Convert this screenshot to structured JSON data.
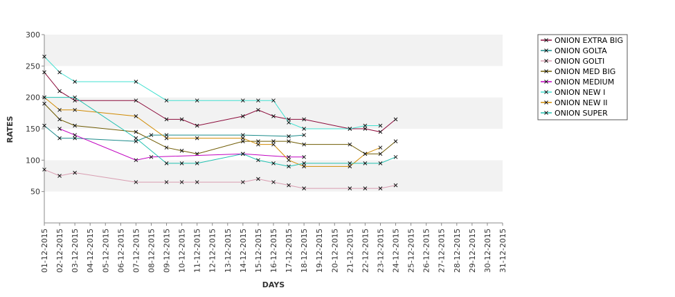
{
  "chart_data": {
    "type": "line",
    "xlabel": "DAYS",
    "ylabel": "RATES",
    "ylim": [
      0,
      300
    ],
    "yticks": [
      50,
      100,
      150,
      200,
      250,
      300
    ],
    "grid": "alternating horizontal bands",
    "legend_position": "right",
    "categories": [
      "01-12-2015",
      "02-12-2015",
      "03-12-2015",
      "04-12-2015",
      "05-12-2015",
      "06-12-2015",
      "07-12-2015",
      "08-12-2015",
      "09-12-2015",
      "10-12-2015",
      "11-12-2015",
      "12-12-2015",
      "13-12-2015",
      "14-12-2015",
      "15-12-2015",
      "16-12-2015",
      "17-12-2015",
      "18-12-2015",
      "19-12-2015",
      "20-12-2015",
      "21-12-2015",
      "22-12-2015",
      "23-12-2015",
      "24-12-2015",
      "25-12-2015",
      "26-12-2015",
      "27-12-2015",
      "28-12-2015",
      "29-12-2015",
      "30-12-2015",
      "31-12-2015"
    ],
    "series": [
      {
        "name": "ONION EXTRA BIG",
        "color": "#8b0a3a",
        "points": [
          [
            0,
            240
          ],
          [
            1,
            210
          ],
          [
            2,
            195
          ],
          [
            6,
            195
          ],
          [
            8,
            165
          ],
          [
            9,
            165
          ],
          [
            10,
            155
          ],
          [
            13,
            170
          ],
          [
            14,
            180
          ],
          [
            15,
            170
          ],
          [
            16,
            165
          ],
          [
            17,
            165
          ],
          [
            20,
            150
          ],
          [
            21,
            150
          ],
          [
            22,
            145
          ],
          [
            23,
            165
          ]
        ]
      },
      {
        "name": "ONION GOLTA",
        "color": "#1a8a8a",
        "points": [
          [
            0,
            155
          ],
          [
            1,
            135
          ],
          [
            2,
            135
          ],
          [
            6,
            130
          ],
          [
            7,
            140
          ],
          [
            8,
            140
          ],
          [
            13,
            140
          ],
          [
            16,
            138
          ],
          [
            17,
            140
          ]
        ]
      },
      {
        "name": "ONION GOLTI",
        "color": "#d89cb0",
        "points": [
          [
            0,
            85
          ],
          [
            1,
            75
          ],
          [
            2,
            80
          ],
          [
            6,
            65
          ],
          [
            8,
            65
          ],
          [
            9,
            65
          ],
          [
            10,
            65
          ],
          [
            13,
            65
          ],
          [
            14,
            70
          ],
          [
            15,
            65
          ],
          [
            16,
            60
          ],
          [
            17,
            55
          ],
          [
            20,
            55
          ],
          [
            21,
            55
          ],
          [
            22,
            55
          ],
          [
            23,
            60
          ]
        ]
      },
      {
        "name": "ONION MED BIG",
        "color": "#6e5a00",
        "points": [
          [
            0,
            190
          ],
          [
            1,
            165
          ],
          [
            2,
            155
          ],
          [
            6,
            145
          ],
          [
            8,
            120
          ],
          [
            9,
            115
          ],
          [
            10,
            110
          ],
          [
            13,
            130
          ],
          [
            14,
            130
          ],
          [
            15,
            130
          ],
          [
            16,
            130
          ],
          [
            17,
            125
          ],
          [
            20,
            125
          ],
          [
            21,
            110
          ],
          [
            22,
            110
          ],
          [
            23,
            130
          ]
        ]
      },
      {
        "name": "ONION MEDIUM",
        "color": "#c000c0",
        "points": [
          [
            1,
            150
          ],
          [
            2,
            140
          ],
          [
            6,
            100
          ],
          [
            7,
            105
          ],
          [
            13,
            110
          ],
          [
            16,
            105
          ],
          [
            17,
            105
          ]
        ]
      },
      {
        "name": "ONION NEW I",
        "color": "#40e0d0",
        "points": [
          [
            0,
            265
          ],
          [
            1,
            240
          ],
          [
            2,
            225
          ],
          [
            6,
            225
          ],
          [
            8,
            195
          ],
          [
            10,
            195
          ],
          [
            13,
            195
          ],
          [
            14,
            195
          ],
          [
            15,
            195
          ],
          [
            16,
            160
          ],
          [
            17,
            150
          ],
          [
            20,
            150
          ],
          [
            21,
            155
          ],
          [
            22,
            155
          ]
        ]
      },
      {
        "name": "ONION NEW II",
        "color": "#d08a00",
        "points": [
          [
            0,
            200
          ],
          [
            1,
            180
          ],
          [
            2,
            180
          ],
          [
            6,
            170
          ],
          [
            8,
            135
          ],
          [
            10,
            135
          ],
          [
            13,
            135
          ],
          [
            14,
            125
          ],
          [
            15,
            125
          ],
          [
            16,
            100
          ],
          [
            17,
            90
          ],
          [
            20,
            90
          ],
          [
            21,
            110
          ],
          [
            22,
            120
          ]
        ]
      },
      {
        "name": "ONION SUPER",
        "color": "#20c0b0",
        "points": [
          [
            0,
            200
          ],
          [
            2,
            200
          ],
          [
            6,
            135
          ],
          [
            8,
            95
          ],
          [
            9,
            95
          ],
          [
            10,
            95
          ],
          [
            13,
            110
          ],
          [
            14,
            100
          ],
          [
            15,
            95
          ],
          [
            16,
            90
          ],
          [
            17,
            95
          ],
          [
            20,
            95
          ],
          [
            21,
            95
          ],
          [
            22,
            95
          ],
          [
            23,
            105
          ]
        ]
      }
    ]
  }
}
